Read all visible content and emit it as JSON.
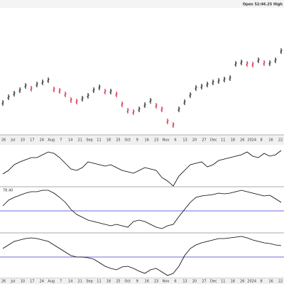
{
  "header": {
    "text": "Open 52:46.25 High"
  },
  "x_axis_labels": [
    "26",
    "Jul",
    "10",
    "17",
    "24",
    "Aug",
    "7",
    "14",
    "21",
    "Sep",
    "11",
    "18",
    "25",
    "Oct",
    "9",
    "16",
    "23",
    "Nov",
    "6",
    "13",
    "20",
    "27",
    "Dec",
    "11",
    "18",
    "26",
    "2024",
    "8",
    "16",
    "22"
  ],
  "chart_data": [
    {
      "type": "ohlc",
      "ylim": [
        10,
        185
      ],
      "up_color": "#000000",
      "down_color": "#d0021b",
      "values": [
        55,
        63,
        68,
        73,
        79,
        75,
        81,
        84,
        87,
        74,
        72,
        67,
        59,
        57,
        61,
        65,
        73,
        77,
        71,
        71,
        67,
        53,
        44,
        42,
        46,
        52,
        58,
        51,
        46,
        29,
        24,
        46,
        56,
        66,
        76,
        78,
        81,
        84,
        86,
        88,
        90,
        110,
        112,
        110,
        109,
        115,
        111,
        111,
        115,
        128
      ]
    },
    {
      "type": "line",
      "ylim": [
        0,
        58
      ],
      "color": "#000000",
      "values": [
        18,
        23,
        31,
        35,
        38,
        41,
        41,
        45,
        49,
        47,
        41,
        33,
        25,
        23,
        27,
        35,
        33,
        31,
        29,
        31,
        27,
        23,
        21,
        19,
        23,
        27,
        25,
        23,
        13,
        8,
        1,
        15,
        23,
        31,
        33,
        35,
        28,
        31,
        37,
        39,
        41,
        43,
        45,
        49,
        43,
        41,
        47,
        43,
        45,
        51
      ]
    },
    {
      "type": "line",
      "ylim": [
        0,
        65
      ],
      "color": "#000000",
      "ref_line": 31,
      "ref_color": "#3a3ad0",
      "label": "78.40",
      "values": [
        38,
        46,
        50,
        53,
        56,
        58,
        58,
        60,
        60,
        56,
        50,
        43,
        33,
        26,
        22,
        18,
        16,
        14,
        12,
        10,
        12,
        10,
        8,
        16,
        18,
        16,
        12,
        8,
        6,
        10,
        12,
        23,
        33,
        43,
        50,
        52,
        53,
        54,
        56,
        55,
        56,
        58,
        60,
        58,
        56,
        54,
        52,
        53,
        48,
        43
      ]
    },
    {
      "type": "line",
      "ylim": [
        0,
        64
      ],
      "color": "#000000",
      "ref_line": 30,
      "ref_color": "#3a3ad0",
      "values": [
        42,
        47,
        52,
        54,
        56,
        57,
        56,
        54,
        52,
        47,
        42,
        37,
        32,
        30,
        30,
        29,
        27,
        22,
        17,
        14,
        12,
        16,
        17,
        14,
        10,
        7,
        12,
        14,
        9,
        4,
        7,
        17,
        32,
        42,
        47,
        50,
        52,
        54,
        56,
        56,
        57,
        58,
        59,
        57,
        54,
        52,
        50,
        49,
        47,
        46
      ]
    }
  ]
}
